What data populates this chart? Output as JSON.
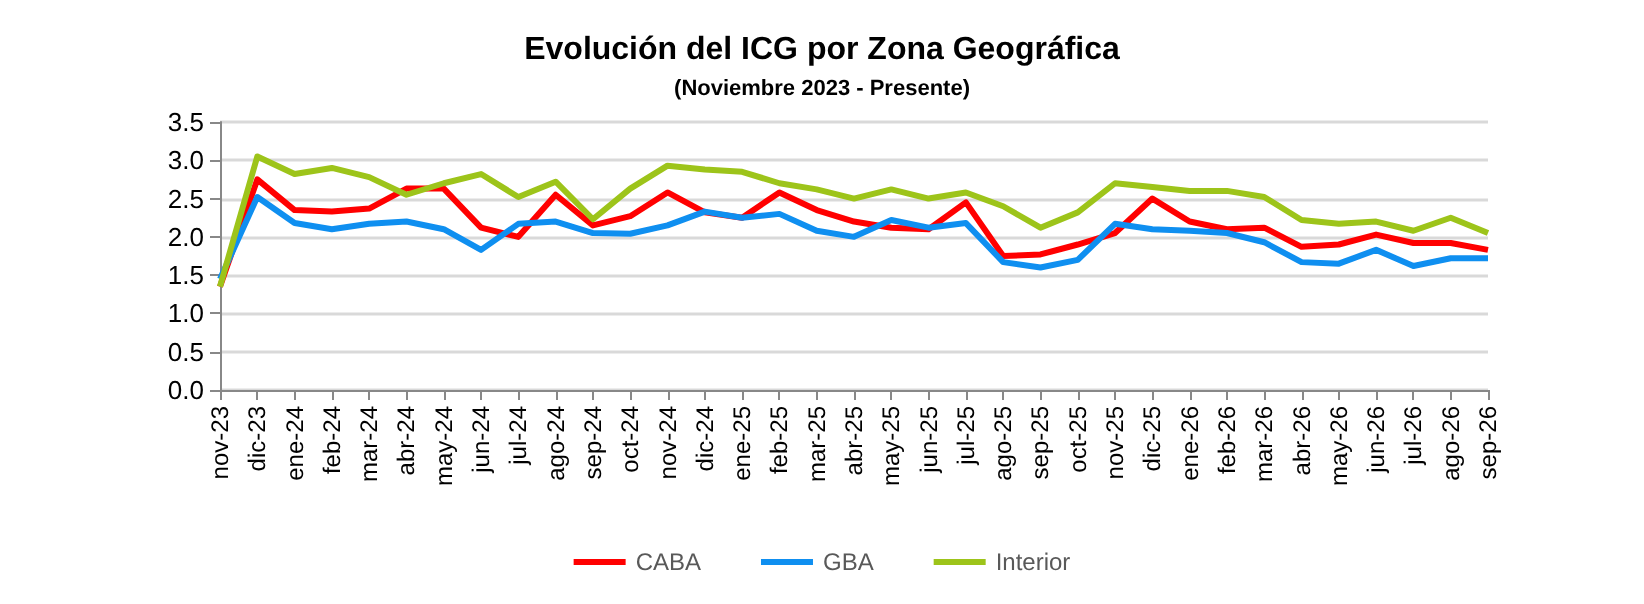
{
  "chart_data": {
    "type": "line",
    "title": "Evolución del ICG por Zona Geográfica",
    "subtitle": "(Noviembre 2023 - Presente)",
    "categories": [
      "nov-23",
      "dic-23",
      "ene-24",
      "feb-24",
      "mar-24",
      "abr-24",
      "may-24",
      "jun-24",
      "jul-24",
      "ago-24",
      "sep-24",
      "oct-24",
      "nov-24",
      "dic-24",
      "ene-25",
      "feb-25",
      "mar-25",
      "abr-25",
      "may-25",
      "jun-25",
      "jul-25",
      "ago-25",
      "sep-25",
      "oct-25",
      "nov-25",
      "dic-25",
      "ene-26",
      "feb-26",
      "mar-26",
      "abr-26",
      "may-26",
      "jun-26",
      "jul-26",
      "ago-26",
      "sep-26"
    ],
    "series": [
      {
        "name": "CABA",
        "color": "#ff0000",
        "values": [
          1.35,
          2.75,
          2.35,
          2.33,
          2.37,
          2.63,
          2.63,
          2.12,
          2.0,
          2.55,
          2.15,
          2.27,
          2.58,
          2.32,
          2.25,
          2.58,
          2.35,
          2.2,
          2.12,
          2.1,
          2.45,
          1.75,
          1.77,
          1.9,
          2.05,
          2.5,
          2.2,
          2.1,
          2.12,
          1.87,
          1.9,
          2.03,
          1.92,
          1.92,
          1.83
        ]
      },
      {
        "name": "GBA",
        "color": "#0f8ff0",
        "values": [
          1.45,
          2.52,
          2.18,
          2.1,
          2.17,
          2.2,
          2.1,
          1.83,
          2.17,
          2.2,
          2.05,
          2.04,
          2.15,
          2.33,
          2.25,
          2.3,
          2.08,
          2.0,
          2.22,
          2.12,
          2.18,
          1.67,
          1.6,
          1.7,
          2.17,
          2.1,
          2.08,
          2.05,
          1.93,
          1.67,
          1.65,
          1.83,
          1.62,
          1.72,
          1.72
        ]
      },
      {
        "name": "Interior",
        "color": "#9dc41a",
        "values": [
          1.35,
          3.05,
          2.82,
          2.9,
          2.78,
          2.55,
          2.7,
          2.82,
          2.52,
          2.72,
          2.23,
          2.63,
          2.93,
          2.88,
          2.85,
          2.7,
          2.62,
          2.5,
          2.62,
          2.5,
          2.58,
          2.4,
          2.12,
          2.32,
          2.7,
          2.65,
          2.6,
          2.6,
          2.52,
          2.22,
          2.17,
          2.2,
          2.08,
          2.25,
          2.05
        ]
      }
    ],
    "ylim": [
      0,
      3.5
    ],
    "yticks": [
      {
        "value": 0,
        "label": "0.0"
      },
      0.5,
      {
        "value": 1,
        "label": "1.0"
      },
      1.5,
      {
        "value": 2,
        "label": "2.0"
      },
      2.5,
      {
        "value": 3,
        "label": "3.0"
      },
      3.5
    ],
    "grid": "y",
    "legend": "bottom",
    "marker": "none",
    "line_style": "solid"
  }
}
